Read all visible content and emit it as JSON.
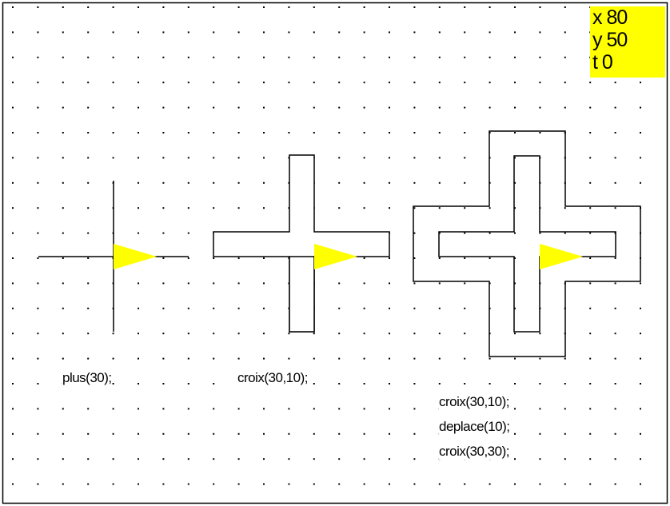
{
  "colors": {
    "turtle": "#ffff00",
    "status_bg": "#ffff00",
    "ink": "#000000",
    "grid_dot": "#000000",
    "background": "#ffffff"
  },
  "status": {
    "x": "x 80",
    "y": "y 50",
    "t": "t 0"
  },
  "examples": [
    {
      "captions": [
        "plus(30);"
      ]
    },
    {
      "captions": [
        "croix(30,10);"
      ]
    },
    {
      "captions": [
        "croix(30,10);",
        "deplace(10);",
        "croix(30,30);"
      ]
    }
  ]
}
